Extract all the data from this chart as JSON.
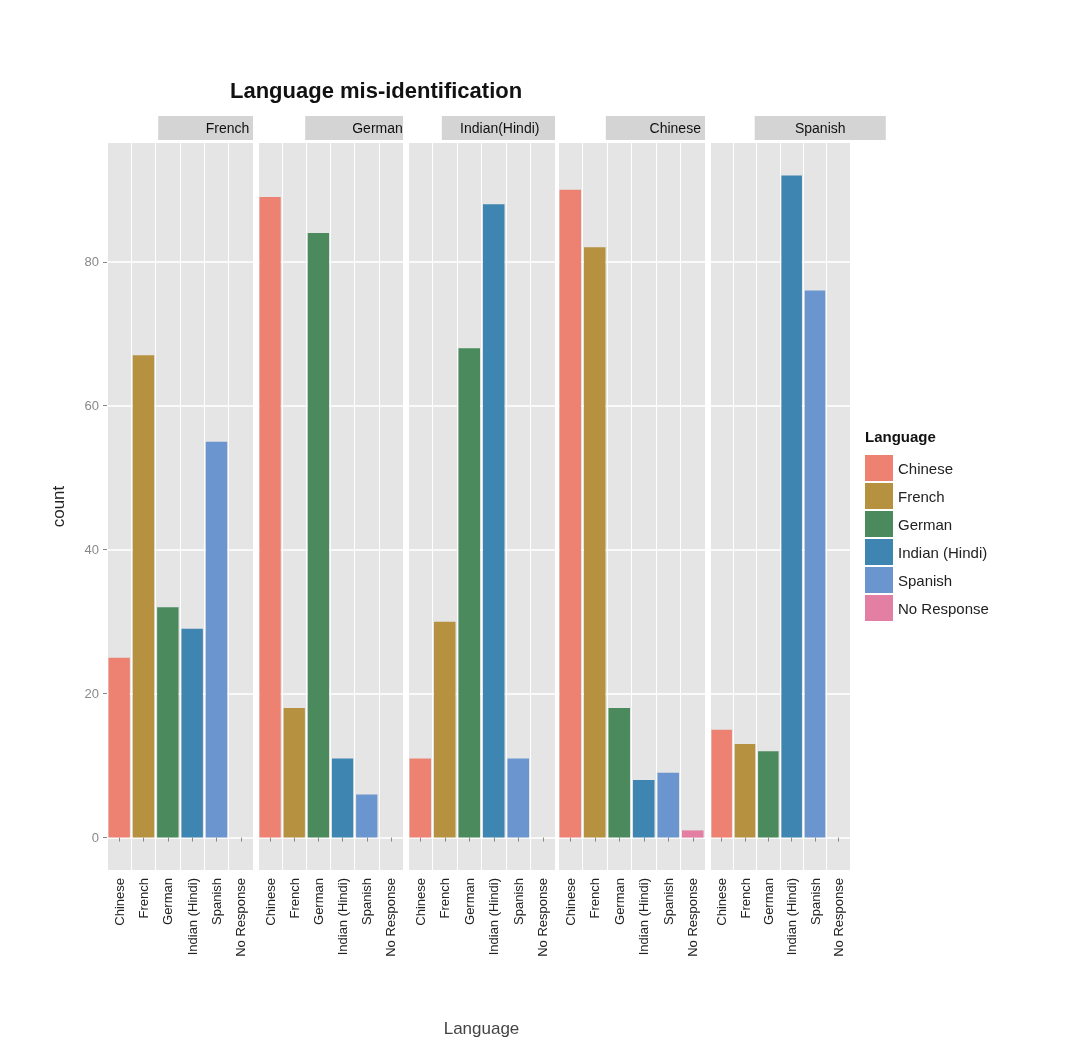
{
  "chart_data": [
    {
      "type": "bar",
      "title": "French",
      "annotations": [
        "Language mis-identification"
      ],
      "ylabel": "count",
      "categories": [
        "Chinese",
        "French",
        "German",
        "Indian (Hindi)",
        "Spanish",
        "No Response"
      ],
      "values": [
        25,
        67,
        32,
        29,
        55,
        null
      ],
      "colors": [
        "#ee8272",
        "#b59140",
        "#4a8a5c",
        "#3f85b2",
        "#6a95cf",
        "#e27fa3"
      ],
      "ylim": [
        -4.5,
        96.5
      ],
      "yticks": [
        0,
        20,
        40,
        60,
        80
      ],
      "grid": true
    },
    {
      "type": "bar",
      "title": "German",
      "categories": [
        "Chinese",
        "French",
        "German",
        "Indian (Hindi)",
        "Spanish",
        "No Response"
      ],
      "values": [
        89,
        18,
        84,
        11,
        6,
        null
      ],
      "colors": [
        "#ee8272",
        "#b59140",
        "#4a8a5c",
        "#3f85b2",
        "#6a95cf",
        "#e27fa3"
      ],
      "ylim": [
        -4.5,
        96.5
      ],
      "yticks": [
        0,
        20,
        40,
        60,
        80
      ],
      "grid": true,
      "tick_labels": "x"
    },
    {
      "type": "bar",
      "title": "Indian(Hindi)",
      "xlabel": "Language",
      "categories": [
        "Chinese",
        "French",
        "German",
        "Indian (Hindi)",
        "Spanish",
        "No Response"
      ],
      "values": [
        11,
        30,
        68,
        88,
        11,
        null
      ],
      "colors": [
        "#ee8272",
        "#b59140",
        "#4a8a5c",
        "#3f85b2",
        "#6a95cf",
        "#e27fa3"
      ],
      "ylim": [
        -4.5,
        96.5
      ],
      "yticks": [
        0,
        20,
        40,
        60,
        80
      ],
      "grid": true,
      "tick_labels": "x"
    },
    {
      "type": "bar",
      "title": "Chinese",
      "categories": [
        "Chinese",
        "French",
        "German",
        "Indian (Hindi)",
        "Spanish",
        "No Response"
      ],
      "values": [
        90,
        82,
        18,
        8,
        9,
        1
      ],
      "colors": [
        "#ee8272",
        "#b59140",
        "#4a8a5c",
        "#3f85b2",
        "#6a95cf",
        "#e27fa3"
      ],
      "ylim": [
        -4.5,
        96.5
      ],
      "yticks": [
        0,
        20,
        40,
        60,
        80
      ],
      "grid": true,
      "tick_labels": "x"
    },
    {
      "type": "bar",
      "title": "Spanish",
      "legend_title": "Language",
      "legend": "right",
      "categories": [
        "Chinese",
        "French",
        "German",
        "Indian (Hindi)",
        "Spanish",
        "No Response"
      ],
      "series": [
        {
          "name": "Chinese",
          "color": "#ee8272",
          "values": [
            15,
            null,
            null,
            null,
            null,
            null
          ]
        },
        {
          "name": "French",
          "color": "#b59140",
          "values": [
            null,
            13,
            null,
            null,
            null,
            null
          ]
        },
        {
          "name": "German",
          "color": "#4a8a5c",
          "values": [
            null,
            null,
            12,
            null,
            null,
            null
          ]
        },
        {
          "name": "Indian (Hindi)",
          "color": "#3f85b2",
          "values": [
            null,
            null,
            null,
            92,
            null,
            null
          ]
        },
        {
          "name": "Spanish",
          "color": "#6a95cf",
          "values": [
            null,
            null,
            null,
            null,
            76,
            null
          ]
        },
        {
          "name": "No Response",
          "color": "#e27fa3",
          "values": [
            null,
            null,
            null,
            null,
            null,
            null
          ]
        }
      ],
      "ylim": [
        -4.5,
        96.5
      ],
      "yticks": [
        0,
        20,
        40,
        60,
        80
      ],
      "grid": true,
      "tick_labels": "x"
    }
  ]
}
